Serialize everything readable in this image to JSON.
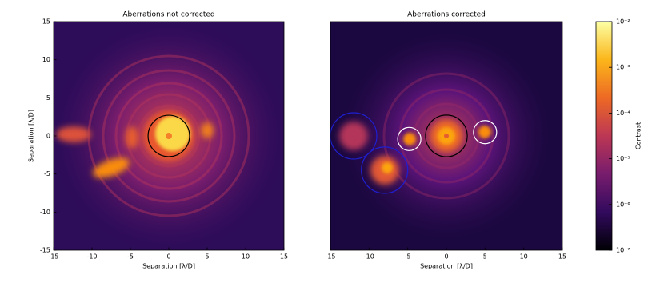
{
  "chart_data": [
    {
      "type": "image",
      "title": "Aberrations not corrected",
      "xlabel": "Separation [λ/D]",
      "ylabel": "Separation [λ/D]",
      "xlim": [
        -15,
        15
      ],
      "ylim": [
        -15,
        15
      ],
      "xticks": [
        -15,
        -10,
        -5,
        0,
        5,
        10,
        15
      ],
      "yticks": [
        -15,
        -10,
        -5,
        0,
        5,
        10,
        15
      ],
      "circles": [
        {
          "x": 0,
          "y": 0,
          "r": 2.7,
          "color": "#000000"
        }
      ]
    },
    {
      "type": "image",
      "title": "Aberrations corrected",
      "xlabel": "Separation [λ/D]",
      "xlim": [
        -15,
        15
      ],
      "ylim": [
        -15,
        15
      ],
      "xticks": [
        -15,
        -10,
        -5,
        0,
        5,
        10,
        15
      ],
      "circles": [
        {
          "x": 0,
          "y": 0,
          "r": 2.7,
          "color": "#000000"
        },
        {
          "x": -4.8,
          "y": -0.4,
          "r": 1.5,
          "color": "#ffffff"
        },
        {
          "x": 5,
          "y": 0.5,
          "r": 1.5,
          "color": "#ffffff"
        },
        {
          "x": -12,
          "y": 0,
          "r": 3,
          "color": "#1f1fd0"
        },
        {
          "x": -8,
          "y": -4.5,
          "r": 3,
          "color": "#1f1fd0"
        }
      ]
    }
  ],
  "colorbar": {
    "label": "Contrast",
    "log_scale": true,
    "lim": [
      1e-07,
      0.01
    ],
    "ticks": [
      {
        "value": 1e-07,
        "label": "10⁻⁷"
      },
      {
        "value": 1e-06,
        "label": "10⁻⁶"
      },
      {
        "value": 1e-05,
        "label": "10⁻⁵"
      },
      {
        "value": 0.0001,
        "label": "10⁻⁴"
      },
      {
        "value": 0.001,
        "label": "10⁻³"
      },
      {
        "value": 0.01,
        "label": "10⁻²"
      }
    ],
    "colors": [
      "#000004",
      "#320a5e",
      "#781c6d",
      "#bc3754",
      "#ed6925",
      "#fbb61a",
      "#fcffa4"
    ]
  }
}
